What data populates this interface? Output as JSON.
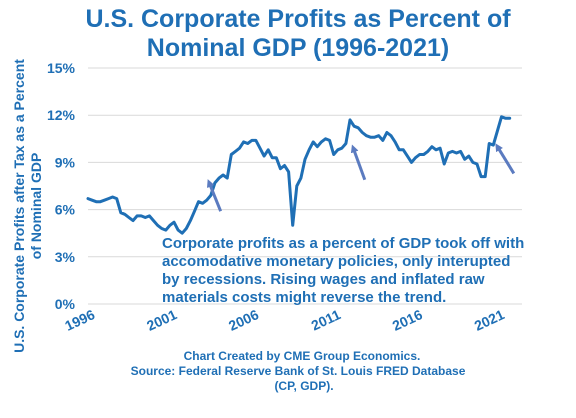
{
  "chart_data": {
    "type": "line",
    "title_lines": [
      "U.S. Corporate Profits as Percent of",
      "Nominal GDP (1996-2021)"
    ],
    "ylabel_lines": [
      "U.S. Corporate Profits after Tax as a Percent",
      "of Nominal GDP"
    ],
    "xlabel": "",
    "ylim": [
      0,
      15
    ],
    "xlim": [
      1996,
      2022.5
    ],
    "yticks": [
      {
        "value": 0,
        "label": "0%"
      },
      {
        "value": 3,
        "label": "3%"
      },
      {
        "value": 6,
        "label": "6%"
      },
      {
        "value": 9,
        "label": "9%"
      },
      {
        "value": 12,
        "label": "12%"
      },
      {
        "value": 15,
        "label": "15%"
      }
    ],
    "xticks": [
      {
        "value": 1996,
        "label": "1996"
      },
      {
        "value": 2001,
        "label": "2001"
      },
      {
        "value": 2006,
        "label": "2006"
      },
      {
        "value": 2011,
        "label": "2011"
      },
      {
        "value": 2016,
        "label": "2016"
      },
      {
        "value": 2021,
        "label": "2021"
      }
    ],
    "grid": "horizontal",
    "line_color": "#1f6fb5",
    "arrow_color": "#5b7bc0",
    "series": [
      {
        "x": [
          1996.0,
          1996.25,
          1996.5,
          1996.75,
          1997.0,
          1997.25,
          1997.5,
          1997.75,
          1998.0,
          1998.25,
          1998.5,
          1998.75,
          1999.0,
          1999.25,
          1999.5,
          1999.75,
          2000.0,
          2000.25,
          2000.5,
          2000.75,
          2001.0,
          2001.25,
          2001.5,
          2001.75,
          2002.0,
          2002.25,
          2002.5,
          2002.75,
          2003.0,
          2003.25,
          2003.5,
          2003.75,
          2004.0,
          2004.25,
          2004.5,
          2004.75,
          2005.0,
          2005.25,
          2005.5,
          2005.75,
          2006.0,
          2006.25,
          2006.5,
          2006.75,
          2007.0,
          2007.25,
          2007.5,
          2007.75,
          2008.0,
          2008.25,
          2008.5,
          2008.75,
          2009.0,
          2009.25,
          2009.5,
          2009.75,
          2010.0,
          2010.25,
          2010.5,
          2010.75,
          2011.0,
          2011.25,
          2011.5,
          2011.75,
          2012.0,
          2012.25,
          2012.5,
          2012.75,
          2013.0,
          2013.25,
          2013.5,
          2013.75,
          2014.0,
          2014.25,
          2014.5,
          2014.75,
          2015.0,
          2015.25,
          2015.5,
          2015.75,
          2016.0,
          2016.25,
          2016.5,
          2016.75,
          2017.0,
          2017.25,
          2017.5,
          2017.75,
          2018.0,
          2018.25,
          2018.5,
          2018.75,
          2019.0,
          2019.25,
          2019.5,
          2019.75,
          2020.0,
          2020.25,
          2020.5,
          2020.75,
          2021.0,
          2021.25,
          2021.5,
          2021.75
        ],
        "values": [
          6.7,
          6.6,
          6.5,
          6.5,
          6.6,
          6.7,
          6.8,
          6.7,
          5.8,
          5.7,
          5.5,
          5.3,
          5.6,
          5.6,
          5.5,
          5.6,
          5.3,
          5.0,
          4.8,
          4.7,
          5.0,
          5.2,
          4.7,
          4.5,
          4.8,
          5.3,
          5.9,
          6.5,
          6.4,
          6.6,
          6.9,
          7.7,
          8.0,
          8.2,
          8.0,
          9.5,
          9.7,
          9.9,
          10.3,
          10.2,
          10.4,
          10.4,
          9.9,
          9.4,
          9.8,
          9.3,
          9.3,
          8.6,
          8.8,
          8.4,
          5.0,
          7.5,
          8.0,
          9.2,
          9.8,
          10.3,
          10.0,
          10.3,
          10.5,
          10.4,
          9.5,
          9.8,
          9.9,
          10.2,
          11.7,
          11.3,
          11.2,
          10.9,
          10.7,
          10.6,
          10.6,
          10.7,
          10.4,
          10.9,
          10.7,
          10.3,
          9.8,
          9.8,
          9.4,
          9.0,
          9.3,
          9.5,
          9.5,
          9.7,
          10.0,
          9.8,
          9.9,
          8.9,
          9.6,
          9.7,
          9.6,
          9.7,
          9.2,
          9.4,
          9.0,
          8.9,
          8.1,
          8.1,
          10.2,
          10.1,
          11.0,
          11.9,
          11.8,
          11.8
        ]
      }
    ],
    "annotations": [
      {
        "text_lines": [
          "Corporate profits as a percent of GDP took off with",
          "accomodative monetary policies, only interupted",
          "by recessions.  Rising wages and inflated raw",
          "materials costs might reverse the trend."
        ]
      }
    ],
    "arrows": [
      {
        "from": [
          2004.1,
          5.9
        ],
        "to": [
          2003.4,
          7.7
        ]
      },
      {
        "from": [
          2012.9,
          7.9
        ],
        "to": [
          2012.2,
          9.9
        ]
      },
      {
        "from": [
          2022.0,
          8.3
        ],
        "to": [
          2021.0,
          10.0
        ]
      }
    ],
    "source_lines": [
      "Chart Created by CME Group Economics.",
      "Source:  Federal Reserve Bank of St. Louis FRED Database",
      "(CP, GDP)."
    ]
  }
}
